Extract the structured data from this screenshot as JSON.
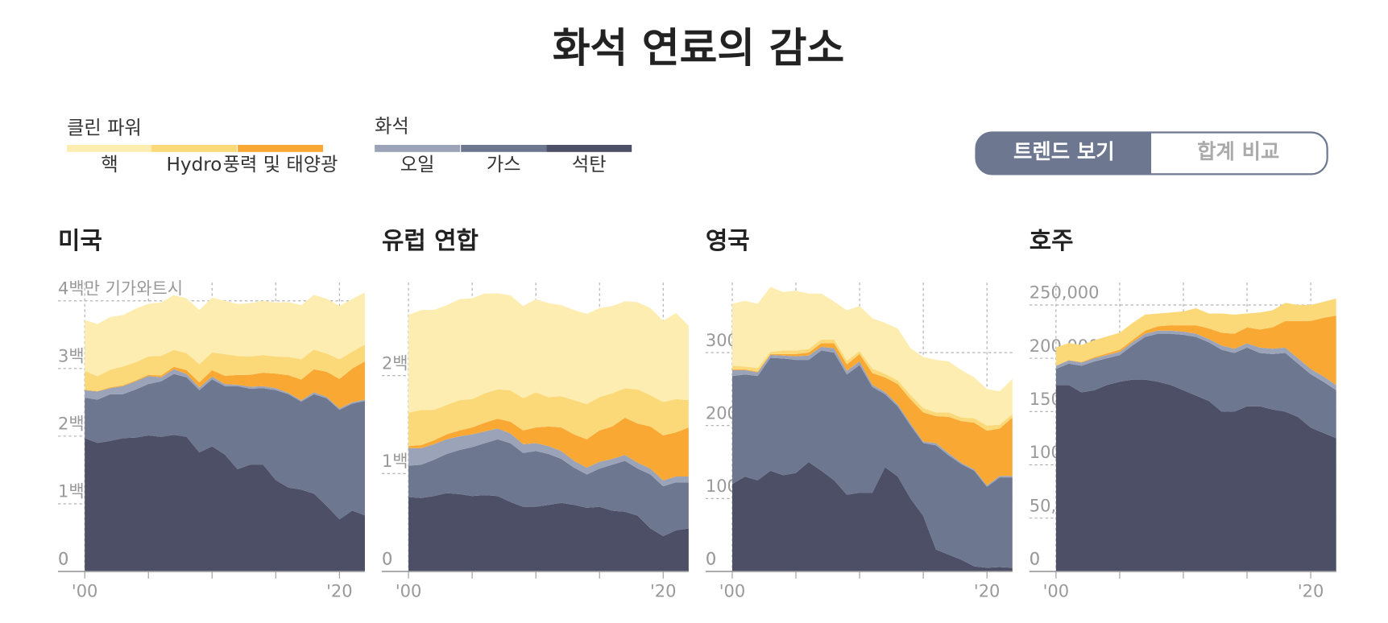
{
  "title": "화석 연료의 감소",
  "legend_groups": [
    "클린 파워",
    "화석"
  ],
  "toggle": [
    "트렌드 보기",
    "합계 비교"
  ],
  "chart_data": [
    {
      "type": "area",
      "title": "미국",
      "x": [
        2000,
        2001,
        2002,
        2003,
        2004,
        2005,
        2006,
        2007,
        2008,
        2009,
        2010,
        2011,
        2012,
        2013,
        2014,
        2015,
        2016,
        2017,
        2018,
        2019,
        2020,
        2021,
        2022
      ],
      "xlim": [
        2000,
        2022
      ],
      "xticks": [
        {
          "value": 2000,
          "label": "'00"
        },
        {
          "value": 2005,
          "label": null
        },
        {
          "value": 2010,
          "label": null
        },
        {
          "value": 2015,
          "label": null
        },
        {
          "value": 2020,
          "label": "'20"
        }
      ],
      "ylim": [
        0,
        4270000
      ],
      "yticks": [
        0,
        {
          "value": 1000000,
          "label": "1백만"
        },
        {
          "value": 2000000,
          "label": "2백만"
        },
        {
          "value": 3000000,
          "label": "3백만"
        },
        {
          "value": 4000000,
          "label": "4백만 기가와트시"
        }
      ],
      "series": [
        {
          "name": "석탄",
          "color": "#4d4f66",
          "values": [
            1970000,
            1900000,
            1930000,
            1970000,
            1980000,
            2010000,
            1990000,
            2020000,
            1990000,
            1760000,
            1850000,
            1730000,
            1510000,
            1580000,
            1580000,
            1350000,
            1240000,
            1210000,
            1150000,
            970000,
            770000,
            900000,
            830000
          ]
        },
        {
          "name": "가스",
          "color": "#6e7790",
          "values": [
            600000,
            640000,
            690000,
            650000,
            710000,
            760000,
            820000,
            900000,
            880000,
            920000,
            990000,
            1010000,
            1230000,
            1120000,
            1130000,
            1330000,
            1380000,
            1300000,
            1470000,
            1590000,
            1620000,
            1580000,
            1690000
          ]
        },
        {
          "name": "오일",
          "color": "#9ba3b8",
          "values": [
            110000,
            120000,
            90000,
            120000,
            120000,
            120000,
            60000,
            70000,
            50000,
            40000,
            40000,
            30000,
            20000,
            30000,
            30000,
            30000,
            20000,
            20000,
            30000,
            20000,
            20000,
            20000,
            20000
          ]
        },
        {
          "name": "풍력 및 태양광",
          "color": "#f9a933",
          "values": [
            6000,
            7000,
            11000,
            11000,
            14000,
            18000,
            27000,
            35000,
            57000,
            75000,
            96000,
            122000,
            145000,
            177000,
            199000,
            216000,
            262000,
            307000,
            339000,
            372000,
            436000,
            498000,
            565000
          ]
        },
        {
          "name": "Hydro",
          "color": "#fcd978",
          "values": [
            280000,
            220000,
            260000,
            280000,
            270000,
            270000,
            290000,
            250000,
            250000,
            270000,
            260000,
            320000,
            280000,
            270000,
            260000,
            250000,
            270000,
            300000,
            290000,
            270000,
            290000,
            250000,
            250000
          ]
        },
        {
          "name": "핵",
          "color": "#fdedb0",
          "values": [
            750000,
            770000,
            780000,
            760000,
            790000,
            780000,
            790000,
            810000,
            810000,
            800000,
            810000,
            790000,
            770000,
            790000,
            800000,
            800000,
            810000,
            800000,
            810000,
            810000,
            790000,
            780000,
            770000
          ]
        }
      ]
    },
    {
      "type": "area",
      "title": "유럽 연합",
      "x": [
        2000,
        2001,
        2002,
        2003,
        2004,
        2005,
        2006,
        2007,
        2008,
        2009,
        2010,
        2011,
        2012,
        2013,
        2014,
        2015,
        2016,
        2017,
        2018,
        2019,
        2020,
        2021,
        2022
      ],
      "xlim": [
        2000,
        2022
      ],
      "xticks": [
        {
          "value": 2000,
          "label": "'00"
        },
        {
          "value": 2005,
          "label": null
        },
        {
          "value": 2010,
          "label": null
        },
        {
          "value": 2015,
          "label": null
        },
        {
          "value": 2020,
          "label": "'20"
        }
      ],
      "ylim": [
        0,
        2950000
      ],
      "yticks": [
        0,
        {
          "value": 1000000,
          "label": "1백만"
        },
        {
          "value": 2000000,
          "label": "2백만"
        }
      ],
      "series": [
        {
          "name": "석탄",
          "color": "#4d4f66",
          "values": [
            760000,
            750000,
            770000,
            800000,
            790000,
            770000,
            780000,
            770000,
            710000,
            660000,
            660000,
            680000,
            700000,
            680000,
            650000,
            660000,
            620000,
            610000,
            570000,
            440000,
            360000,
            420000,
            440000
          ]
        },
        {
          "name": "가스",
          "color": "#6e7790",
          "values": [
            320000,
            340000,
            370000,
            400000,
            450000,
            500000,
            530000,
            580000,
            600000,
            550000,
            570000,
            520000,
            450000,
            380000,
            340000,
            390000,
            470000,
            520000,
            480000,
            550000,
            510000,
            490000,
            470000
          ]
        },
        {
          "name": "오일",
          "color": "#9ba3b8",
          "values": [
            180000,
            170000,
            160000,
            150000,
            140000,
            130000,
            120000,
            110000,
            100000,
            90000,
            80000,
            80000,
            80000,
            70000,
            70000,
            70000,
            60000,
            60000,
            60000,
            60000,
            60000,
            60000,
            60000
          ]
        },
        {
          "name": "풍력 및 태양광",
          "color": "#f9a933",
          "values": [
            20000,
            30000,
            40000,
            50000,
            60000,
            70000,
            90000,
            100000,
            120000,
            140000,
            160000,
            200000,
            240000,
            270000,
            290000,
            320000,
            330000,
            380000,
            400000,
            430000,
            460000,
            450000,
            500000
          ]
        },
        {
          "name": "Hydro",
          "color": "#fcd978",
          "values": [
            340000,
            360000,
            310000,
            300000,
            310000,
            290000,
            300000,
            300000,
            320000,
            330000,
            360000,
            300000,
            320000,
            350000,
            360000,
            340000,
            340000,
            300000,
            350000,
            320000,
            340000,
            340000,
            280000
          ]
        },
        {
          "name": "핵",
          "color": "#fdedb0",
          "values": [
            1000000,
            1020000,
            1020000,
            1020000,
            1030000,
            1030000,
            1020000,
            980000,
            970000,
            940000,
            950000,
            960000,
            930000,
            920000,
            920000,
            910000,
            890000,
            890000,
            890000,
            890000,
            830000,
            880000,
            760000
          ]
        }
      ]
    },
    {
      "type": "area",
      "title": "영국",
      "x": [
        2000,
        2001,
        2002,
        2003,
        2004,
        2005,
        2006,
        2007,
        2008,
        2009,
        2010,
        2011,
        2012,
        2013,
        2014,
        2015,
        2016,
        2017,
        2018,
        2019,
        2020,
        2021,
        2022
      ],
      "xlim": [
        2000,
        2022
      ],
      "xticks": [
        {
          "value": 2000,
          "label": "'00"
        },
        {
          "value": 2005,
          "label": null
        },
        {
          "value": 2010,
          "label": null
        },
        {
          "value": 2015,
          "label": null
        },
        {
          "value": 2020,
          "label": "'20"
        }
      ],
      "ylim": [
        0,
        396000
      ],
      "yticks": [
        0,
        {
          "value": 100000,
          "label": "100,000"
        },
        {
          "value": 200000,
          "label": "200,000"
        },
        {
          "value": 300000,
          "label": "300,000"
        }
      ],
      "series": [
        {
          "name": "석탄",
          "color": "#4d4f66",
          "values": [
            120000,
            130000,
            125000,
            138000,
            132000,
            135000,
            150000,
            138000,
            125000,
            105000,
            108000,
            108000,
            143000,
            130000,
            100000,
            76000,
            30000,
            23000,
            16000,
            7000,
            5000,
            6000,
            5000
          ]
        },
        {
          "name": "가스",
          "color": "#6e7790",
          "values": [
            148000,
            140000,
            143000,
            155000,
            160000,
            155000,
            140000,
            165000,
            175000,
            165000,
            175000,
            145000,
            100000,
            96000,
            100000,
            100000,
            143000,
            136000,
            131000,
            131000,
            111000,
            123000,
            124000
          ]
        },
        {
          "name": "오일",
          "color": "#9ba3b8",
          "values": [
            8000,
            6000,
            5000,
            4000,
            4000,
            5000,
            6000,
            5000,
            6000,
            5000,
            5000,
            3000,
            3000,
            3000,
            3000,
            2000,
            3000,
            3000,
            2000,
            2000,
            2000,
            2000,
            2000
          ]
        },
        {
          "name": "풍력 및 태양광",
          "color": "#f9a933",
          "values": [
            1000,
            1000,
            1000,
            1000,
            2000,
            3000,
            4000,
            5000,
            7000,
            9000,
            10000,
            16000,
            20000,
            28000,
            33000,
            40000,
            37000,
            50000,
            57000,
            64000,
            75000,
            65000,
            80000
          ]
        },
        {
          "name": "Hydro",
          "color": "#fcd978",
          "values": [
            5000,
            4000,
            5000,
            3000,
            5000,
            5000,
            5000,
            5000,
            5000,
            5000,
            4000,
            6000,
            5000,
            5000,
            6000,
            6000,
            5000,
            6000,
            5000,
            6000,
            7000,
            5000,
            5000
          ]
        },
        {
          "name": "핵",
          "color": "#fdedb0",
          "values": [
            85000,
            90000,
            88000,
            89000,
            80000,
            82000,
            76000,
            63000,
            52000,
            69000,
            62000,
            69000,
            70000,
            71000,
            64000,
            70000,
            72000,
            70000,
            65000,
            56000,
            50000,
            46000,
            48000
          ]
        }
      ]
    },
    {
      "type": "area",
      "title": "호주",
      "x": [
        2000,
        2001,
        2002,
        2003,
        2004,
        2005,
        2006,
        2007,
        2008,
        2009,
        2010,
        2011,
        2012,
        2013,
        2014,
        2015,
        2016,
        2017,
        2018,
        2019,
        2020,
        2021,
        2022
      ],
      "xlim": [
        2000,
        2022
      ],
      "xticks": [
        {
          "value": 2000,
          "label": "'00"
        },
        {
          "value": 2005,
          "label": null
        },
        {
          "value": 2010,
          "label": null
        },
        {
          "value": 2015,
          "label": null
        },
        {
          "value": 2020,
          "label": "'20"
        }
      ],
      "ylim": [
        0,
        271000
      ],
      "yticks": [
        0,
        {
          "value": 50000,
          "label": "50,000"
        },
        {
          "value": 100000,
          "label": "100,000"
        },
        {
          "value": 150000,
          "label": "150,000"
        },
        {
          "value": 200000,
          "label": "200,000"
        },
        {
          "value": 250000,
          "label": "250,000"
        }
      ],
      "series": [
        {
          "name": "석탄",
          "color": "#4d4f66",
          "values": [
            175000,
            175000,
            168000,
            170000,
            175000,
            178000,
            180000,
            180000,
            178000,
            175000,
            170000,
            165000,
            160000,
            150000,
            150000,
            155000,
            155000,
            152000,
            150000,
            145000,
            135000,
            130000,
            125000
          ]
        },
        {
          "name": "가스",
          "color": "#6e7790",
          "values": [
            15000,
            20000,
            25000,
            27000,
            25000,
            25000,
            32000,
            40000,
            45000,
            48000,
            52000,
            55000,
            55000,
            58000,
            55000,
            55000,
            50000,
            52000,
            55000,
            50000,
            50000,
            48000,
            45000
          ]
        },
        {
          "name": "오일",
          "color": "#9ba3b8",
          "values": [
            3000,
            3000,
            3000,
            3000,
            3000,
            3000,
            3000,
            3000,
            3000,
            3000,
            3000,
            3000,
            3000,
            4000,
            4000,
            4000,
            5000,
            5000,
            5000,
            5000,
            5000,
            5000,
            5000
          ]
        },
        {
          "name": "풍력 및 태양광",
          "color": "#f9a933",
          "values": [
            100,
            300,
            500,
            1000,
            1500,
            2000,
            2000,
            3000,
            4000,
            5000,
            6000,
            8000,
            10000,
            12000,
            14000,
            15000,
            17000,
            20000,
            25000,
            35000,
            45000,
            55000,
            65000
          ]
        },
        {
          "name": "Hydro",
          "color": "#fcd978",
          "values": [
            17000,
            16000,
            16000,
            16000,
            16000,
            16000,
            16000,
            15000,
            12000,
            12000,
            13000,
            16000,
            14000,
            18000,
            18000,
            13000,
            16000,
            16000,
            17000,
            15000,
            15000,
            15000,
            16000
          ]
        },
        {
          "name": "핵",
          "color": "#fdedb0",
          "values": [
            0,
            0,
            0,
            0,
            0,
            0,
            0,
            0,
            0,
            0,
            0,
            0,
            0,
            0,
            0,
            0,
            0,
            0,
            0,
            0,
            0,
            0,
            0
          ]
        }
      ]
    }
  ]
}
